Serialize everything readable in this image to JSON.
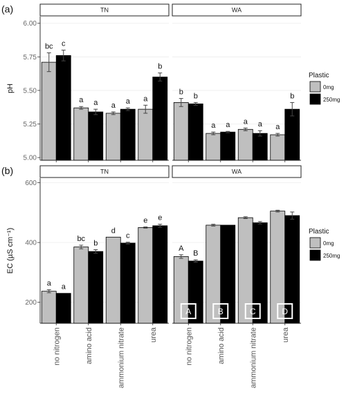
{
  "chart_data": [
    {
      "type": "bar",
      "panel_tag": "(a)",
      "ylabel": "pH",
      "ylim": [
        4.98,
        6.05
      ],
      "yticks": [
        "5.00",
        "5.25",
        "5.50",
        "5.75",
        "6.00"
      ],
      "facets": [
        "TN",
        "WA"
      ],
      "categories": [
        "no nitrogen",
        "amino acid",
        "ammonium nitrate",
        "urea"
      ],
      "series": [
        {
          "name": "0mg",
          "color": "#bfbfbf",
          "values": {
            "TN": [
              5.71,
              5.37,
              5.33,
              5.36
            ],
            "WA": [
              5.41,
              5.18,
              5.21,
              5.17
            ]
          },
          "errors": {
            "TN": [
              0.07,
              0.01,
              0.01,
              0.03
            ],
            "WA": [
              0.03,
              0.01,
              0.01,
              0.01
            ]
          },
          "letters": {
            "TN": [
              "bc",
              "a",
              "a",
              "a"
            ],
            "WA": [
              "b",
              "a",
              "a",
              "a"
            ]
          }
        },
        {
          "name": "250mg",
          "color": "#000000",
          "values": {
            "TN": [
              5.76,
              5.34,
              5.36,
              5.6
            ],
            "WA": [
              5.4,
              5.19,
              5.18,
              5.36
            ]
          },
          "errors": {
            "TN": [
              0.04,
              0.02,
              0.01,
              0.03
            ],
            "WA": [
              0.01,
              0.005,
              0.02,
              0.05
            ]
          },
          "letters": {
            "TN": [
              "c",
              "a",
              "a",
              "b"
            ],
            "WA": [
              "b",
              "a",
              "a",
              "b"
            ]
          }
        }
      ],
      "legend": {
        "title": "Plastic",
        "entries": [
          "0mg",
          "250mg"
        ],
        "position": "right"
      },
      "grid": true
    },
    {
      "type": "bar",
      "panel_tag": "(b)",
      "ylabel": "EC (µS cm⁻¹)",
      "ylim": [
        130,
        615
      ],
      "yticks": [
        "200",
        "400",
        "600"
      ],
      "facets": [
        "TN",
        "WA"
      ],
      "categories": [
        "no nitrogen",
        "amino acid",
        "ammonium nitrate",
        "urea"
      ],
      "series": [
        {
          "name": "0mg",
          "color": "#bfbfbf",
          "values": {
            "TN": [
              237,
              385,
              418,
              450
            ],
            "WA": [
              353,
              458,
              483,
              505
            ]
          },
          "errors": {
            "TN": [
              5,
              6,
              0,
              2
            ],
            "WA": [
              6,
              3,
              3,
              3
            ]
          },
          "letters": {
            "TN": [
              "a",
              "bc",
              "d",
              "e"
            ],
            "WA": [
              "A",
              "",
              "",
              ""
            ]
          }
        },
        {
          "name": "250mg",
          "color": "#000000",
          "values": {
            "TN": [
              230,
              370,
              398,
              456
            ],
            "WA": [
              338,
              458,
              466,
              490
            ]
          },
          "errors": {
            "TN": [
              0,
              6,
              3,
              5
            ],
            "WA": [
              4,
              0,
              4,
              12
            ]
          },
          "letters": {
            "TN": [
              "a",
              "b",
              "c",
              "e"
            ],
            "WA": [
              "B",
              "",
              "",
              ""
            ]
          }
        }
      ],
      "boxed_labels": [
        "A",
        "B",
        "C",
        "D"
      ],
      "legend": {
        "title": "Plastic",
        "entries": [
          "0mg",
          "250mg"
        ],
        "position": "right"
      },
      "grid": true
    }
  ]
}
